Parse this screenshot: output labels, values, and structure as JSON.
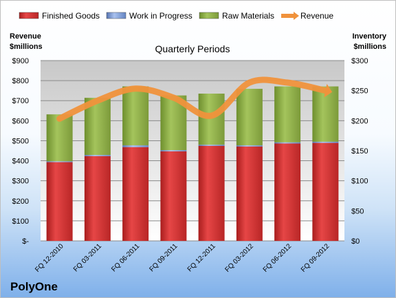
{
  "company": "PolyOne",
  "chart_data": {
    "type": "bar",
    "subtype": "stacked-bar-with-line",
    "title": "Quarterly Periods",
    "ylabel_left": [
      "Revenue",
      "$millions"
    ],
    "ylabel_right": [
      "Inventory",
      "$millions"
    ],
    "categories": [
      "FQ 12-2010",
      "FQ 03-2011",
      "FQ 06-2011",
      "FQ 09-2011",
      "FQ 12-2011",
      "FQ 03-2012",
      "FQ 06-2012",
      "FQ 09-2012"
    ],
    "ylim_left": [
      0,
      900
    ],
    "ylim_right": [
      0,
      300
    ],
    "left_ticks": [
      "$-",
      "$100",
      "$200",
      "$300",
      "$400",
      "$500",
      "$600",
      "$700",
      "$800",
      "$900"
    ],
    "right_ticks": [
      "$0",
      "$50",
      "$100",
      "$150",
      "$200",
      "$250",
      "$300"
    ],
    "grid": true,
    "legend_position": "top",
    "series": [
      {
        "name": "Finished Goods",
        "axis": "right",
        "color": "#e03c3c",
        "values": [
          131,
          141,
          156,
          149,
          158,
          157,
          162,
          163
        ]
      },
      {
        "name": "Work in Progress",
        "axis": "right",
        "color": "#7f9fd6",
        "values": [
          1.5,
          2,
          3,
          2,
          2,
          2,
          2,
          2
        ]
      },
      {
        "name": "Raw Materials",
        "axis": "right",
        "color": "#8fb04d",
        "values": [
          78,
          95,
          98,
          91,
          85,
          94,
          93,
          92
        ]
      },
      {
        "name": "Revenue",
        "axis": "left",
        "color": "#f0923c",
        "type": "line",
        "values": [
          610,
          700,
          760,
          715,
          625,
          790,
          790,
          750
        ]
      }
    ]
  }
}
